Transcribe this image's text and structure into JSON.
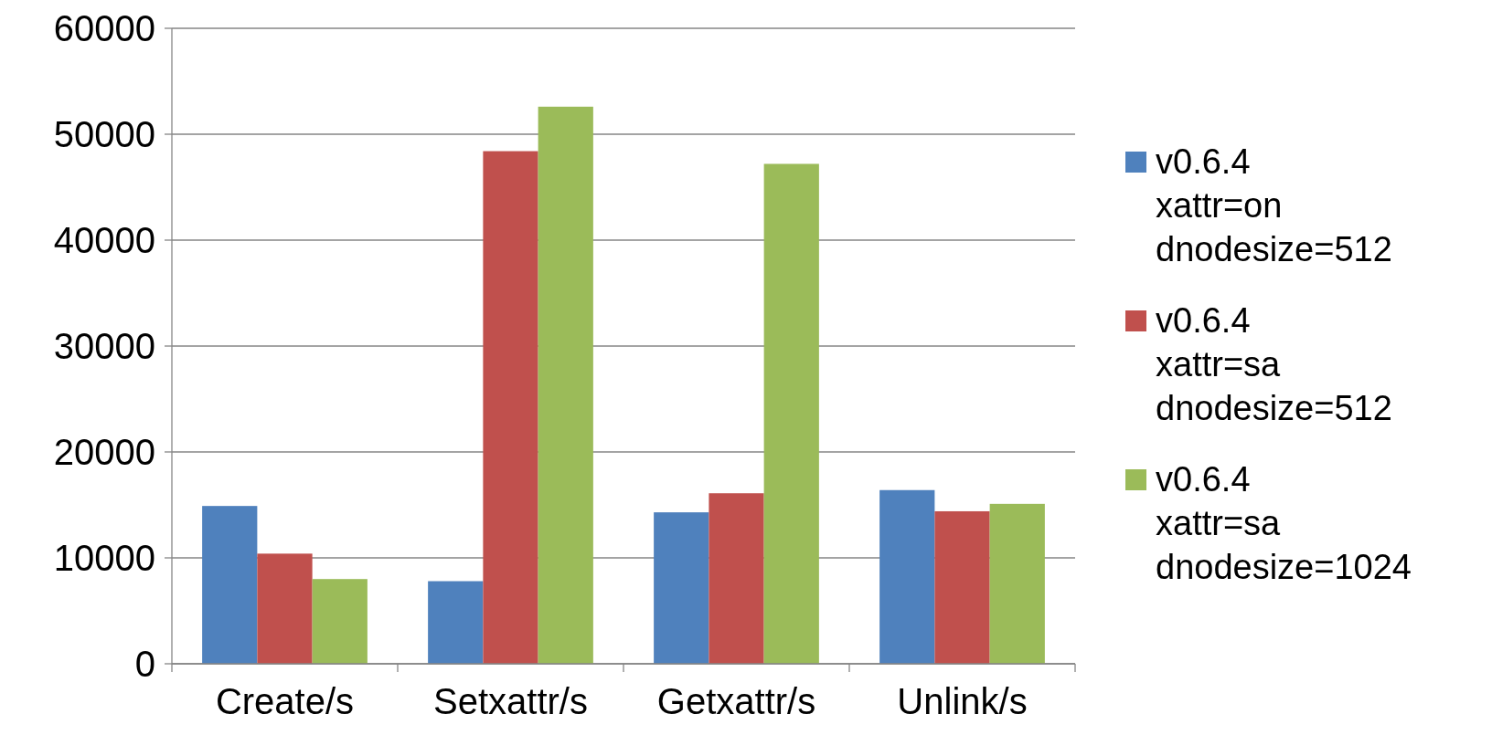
{
  "chart_data": {
    "type": "bar",
    "categories": [
      "Create/s",
      "Setxattr/s",
      "Getxattr/s",
      "Unlink/s"
    ],
    "series": [
      {
        "name": "v0.6.4\nxattr=on\ndnodesize=512",
        "color": "#4f81bd",
        "values": [
          14900,
          7800,
          14300,
          16400
        ]
      },
      {
        "name": "v0.6.4\nxattr=sa\ndnodesize=512",
        "color": "#c0504d",
        "values": [
          10400,
          48400,
          16100,
          14400
        ]
      },
      {
        "name": "v0.6.4\nxattr=sa\ndnodesize=1024",
        "color": "#9bbb59",
        "values": [
          8000,
          52600,
          47200,
          15100
        ]
      }
    ],
    "ylim": [
      0,
      60000
    ],
    "yticks": [
      0,
      10000,
      20000,
      30000,
      40000,
      50000,
      60000
    ],
    "grid": "y",
    "legend": "right"
  }
}
